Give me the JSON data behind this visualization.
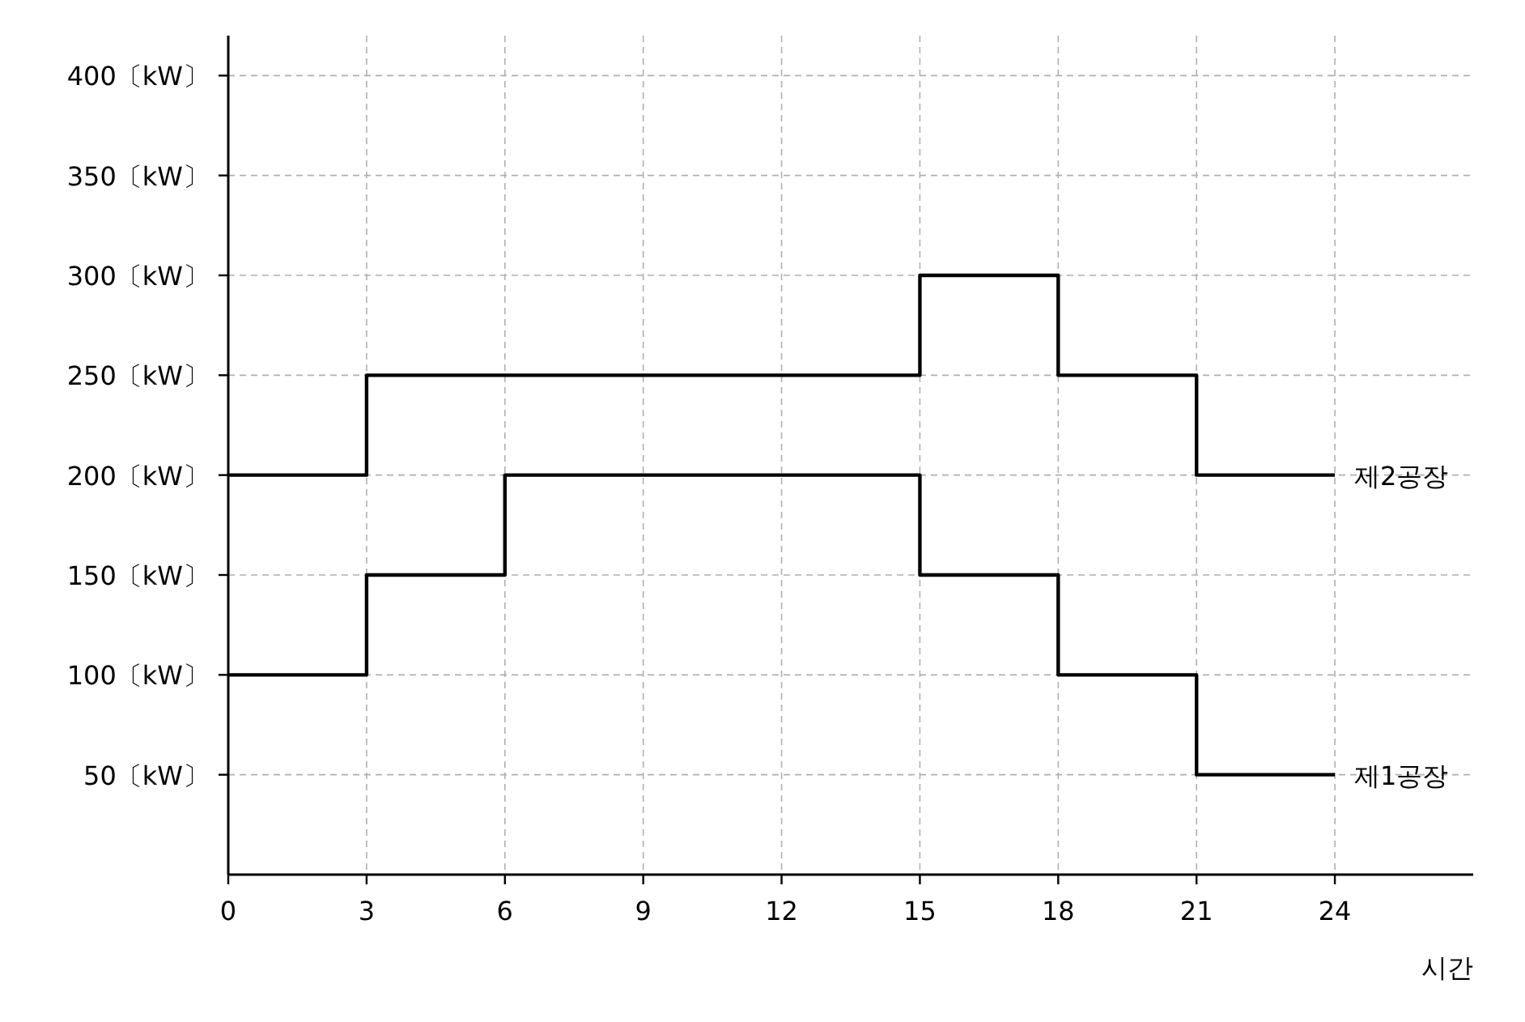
{
  "chart_data": {
    "type": "step",
    "xlabel": "시간",
    "xlim": [
      0,
      27
    ],
    "xticks": [
      0,
      3,
      6,
      9,
      12,
      15,
      18,
      21,
      24
    ],
    "ylim": [
      0,
      420
    ],
    "yticks": [
      {
        "value": 50,
        "label": "50〔kW〕"
      },
      {
        "value": 100,
        "label": "100〔kW〕"
      },
      {
        "value": 150,
        "label": "150〔kW〕"
      },
      {
        "value": 200,
        "label": "200〔kW〕"
      },
      {
        "value": 250,
        "label": "250〔kW〕"
      },
      {
        "value": 300,
        "label": "300〔kW〕"
      },
      {
        "value": 350,
        "label": "350〔kW〕"
      },
      {
        "value": 400,
        "label": "400〔kW〕"
      }
    ],
    "grid": true,
    "legend": false,
    "line_style": "solid",
    "marker": "none",
    "series": [
      {
        "name": "제1공장",
        "color": "#000000",
        "x": [
          0,
          3,
          6,
          15,
          18,
          21,
          24
        ],
        "values": [
          100,
          150,
          200,
          150,
          100,
          50,
          50
        ]
      },
      {
        "name": "제2공장",
        "color": "#000000",
        "x": [
          0,
          3,
          15,
          18,
          21,
          24
        ],
        "values": [
          200,
          250,
          300,
          250,
          200,
          200
        ]
      }
    ]
  }
}
